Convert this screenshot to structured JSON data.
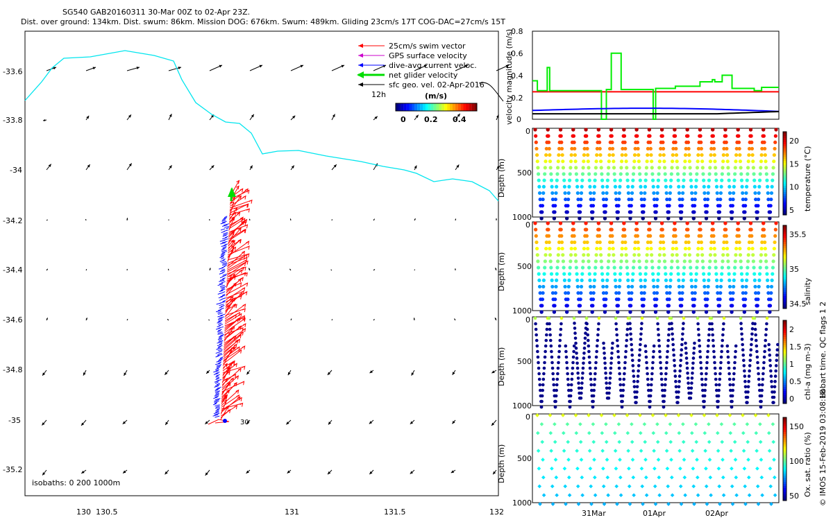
{
  "header": {
    "line1": "SG540 GAB20160311 30-Mar 00Z to 02-Apr 23Z.",
    "line2": "Dist. over ground: 134km. Dist. swum: 86km. Mission DOG: 676km. Swum: 489km. Gliding 23cm/s 17T COG-DAC=27cm/s 15T"
  },
  "map": {
    "xticks": [
      "130",
      "130.5",
      "131",
      "131.5",
      "132"
    ],
    "yticks": [
      "-33.6",
      "-33.8",
      "-34",
      "-34.2",
      "-34.4",
      "-34.6",
      "-34.8",
      "-35",
      "-35.2"
    ],
    "isobaths": "isobaths: 0   200  1000m",
    "start_label": "30",
    "legend": [
      {
        "label": "25cm/s swim vector",
        "color": "#ff0000"
      },
      {
        "label": "GPS surface velocity",
        "color": "#cc00cc"
      },
      {
        "label": "dive-avg current veloc.",
        "color": "#0000ff"
      },
      {
        "label": "net glider velocity",
        "color": "#00dd00"
      },
      {
        "label": "sfc geo. vel. 02-Apr-2016",
        "color": "#000000"
      }
    ],
    "scale_label": "12h",
    "colorbar_title": "(m/s)",
    "colorbar_ticks": [
      "0",
      "0.2",
      "0.4"
    ]
  },
  "panels": {
    "velocity": {
      "ylabel": "velocity magnitude (m/s)",
      "yticks": [
        "0",
        "0.2",
        "0.4",
        "0.6",
        "0.8"
      ]
    },
    "temperature": {
      "ylabel": "Depth (m)",
      "cbar_label": "temperature (°C)",
      "cbar_ticks": [
        "20",
        "15",
        "10",
        "5"
      ]
    },
    "salinity": {
      "ylabel": "Depth (m)",
      "cbar_label": "salinity",
      "cbar_ticks": [
        "35.5",
        "35",
        "34.5"
      ]
    },
    "chla": {
      "ylabel": "Depth (m)",
      "cbar_label": "chl-a (mg m-3)",
      "cbar_ticks": [
        "2",
        "1.5",
        "1",
        "0.5",
        "0"
      ]
    },
    "oxygen": {
      "ylabel": "Depth (m)",
      "cbar_label": "Ox. sat. ratio (%)",
      "cbar_ticks": [
        "150",
        "100",
        "50"
      ]
    },
    "depth_ticks": [
      "500",
      "1000"
    ],
    "depth_tick0": "0",
    "time_ticks": [
      "31Mar",
      "01Apr",
      "02Apr"
    ]
  },
  "footer": {
    "qc": "Hobart time. QC flags 1  2",
    "credit": "© IMOS 15-Feb-2019 03:08:18"
  },
  "chart_data": [
    {
      "type": "scatter",
      "title": "SG540 GAB20160311 30-Mar 00Z to 02-Apr 23Z.",
      "xlim": [
        129.7,
        132.0
      ],
      "ylim": [
        -35.3,
        -33.45
      ],
      "track_start": {
        "lon": 130.6,
        "lat": -35.0
      },
      "track_end": {
        "lon": 130.7,
        "lat": -34.1
      },
      "current_grid": {
        "lons": [
          129.8,
          130.0,
          130.2,
          130.4,
          130.6,
          130.8,
          131.0,
          131.2,
          131.4,
          131.6,
          131.8
        ],
        "lats": [
          -33.6,
          -33.8,
          -34.0,
          -34.2,
          -34.4,
          -34.6,
          -34.8,
          -35.0,
          -35.2
        ]
      }
    },
    {
      "type": "line",
      "ylabel": "velocity magnitude (m/s)",
      "ylim": [
        0,
        0.8
      ],
      "x_days": [
        0,
        0.3,
        0.5,
        1.0,
        1.5,
        1.6,
        2.0,
        2.5,
        3.0,
        3.4,
        3.8,
        4.0
      ],
      "series": [
        {
          "color": "#ff0000",
          "values": [
            0.25,
            0.25,
            0.25,
            0.25,
            0.25,
            0.25,
            0.25,
            0.25,
            0.25,
            0.25,
            0.25,
            0.25
          ]
        },
        {
          "color": "#00ee00",
          "values": [
            0.35,
            0.26,
            0.47,
            0.26,
            0.6,
            0.27,
            0.28,
            0.3,
            0.34,
            0.4,
            0.28,
            0.29
          ]
        },
        {
          "color": "#0000ff",
          "values": [
            0.08,
            0.09,
            0.1,
            0.1,
            0.1,
            0.1,
            0.09,
            0.09,
            0.09,
            0.09,
            0.08,
            0.07
          ]
        },
        {
          "color": "#000000",
          "values": [
            0.05,
            0.05,
            0.05,
            0.05,
            0.05,
            0.05,
            0.05,
            0.05,
            0.05,
            0.06,
            0.07,
            0.07
          ]
        }
      ]
    },
    {
      "type": "scatter",
      "ylabel": "Depth (m)",
      "cbar": "temperature (°C)",
      "cbar_range": [
        3,
        23
      ],
      "ylim": [
        1000,
        0
      ],
      "n_dives": 19
    },
    {
      "type": "scatter",
      "ylabel": "Depth (m)",
      "cbar": "salinity",
      "cbar_range": [
        34.3,
        35.9
      ],
      "ylim": [
        1000,
        0
      ],
      "n_dives": 19
    },
    {
      "type": "scatter",
      "ylabel": "Depth (m)",
      "cbar": "chl-a (mg m-3)",
      "cbar_range": [
        0,
        2
      ],
      "ylim": [
        1000,
        0
      ]
    },
    {
      "type": "scatter",
      "ylabel": "Depth (m)",
      "cbar": "Ox. sat. ratio (%)",
      "cbar_range": [
        20,
        175
      ],
      "ylim": [
        1000,
        0
      ]
    }
  ]
}
